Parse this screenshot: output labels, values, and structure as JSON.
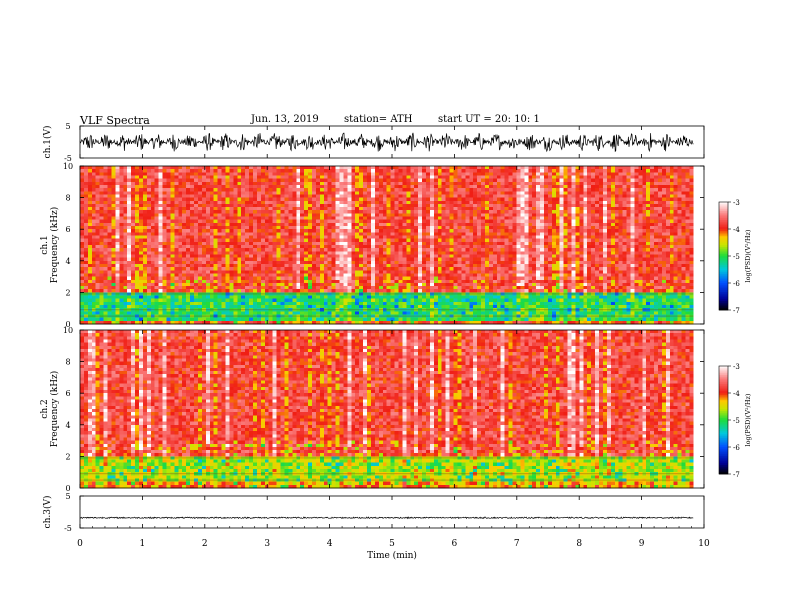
{
  "header": {
    "title": "VLF  Spectra",
    "date": "Jun. 13, 2019",
    "station": "station= ATH",
    "start": "start  UT  =    20: 10: 1"
  },
  "chart_data": [
    {
      "type": "line",
      "panel": "ch1-waveform",
      "ylabel": "ch.1(V)",
      "ylim": [
        -5,
        5
      ],
      "y_ticks": [
        "5",
        "-5"
      ],
      "x_range_min": [
        0,
        9.83
      ],
      "description_values": {
        "mean": 0,
        "amplitude_typical": 3
      },
      "color": "#000000"
    },
    {
      "type": "heatmap",
      "panel": "ch1-spectrogram",
      "ylabel": "ch.1",
      "ylabel2": "Frequency  (kHz)",
      "ylim": [
        0,
        10
      ],
      "y_ticks": [
        "0",
        "2",
        "4",
        "6",
        "8",
        "10"
      ],
      "x_range_min": [
        0,
        9.83
      ],
      "bands": [
        {
          "f_min": 0.0,
          "f_max": 0.3,
          "log_psd": -4.0
        },
        {
          "f_min": 0.3,
          "f_max": 2.0,
          "log_psd": -5.0
        },
        {
          "f_min": 2.0,
          "f_max": 10.0,
          "log_psd": -3.8
        }
      ],
      "colorbar": {
        "label": "log(PSD)(V²/Hz)",
        "range": [
          -7,
          -3
        ],
        "ticks": [
          "-3",
          "-4",
          "-5",
          "-6",
          "-7"
        ]
      }
    },
    {
      "type": "heatmap",
      "panel": "ch2-spectrogram",
      "ylabel": "ch.2",
      "ylabel2": "Frequency  (kHz)",
      "ylim": [
        0,
        10
      ],
      "y_ticks": [
        "0",
        "2",
        "4",
        "6",
        "8",
        "10"
      ],
      "x_range_min": [
        0,
        9.83
      ],
      "bands": [
        {
          "f_min": 0.0,
          "f_max": 0.5,
          "log_psd": -4.2
        },
        {
          "f_min": 0.5,
          "f_max": 2.0,
          "log_psd": -4.6
        },
        {
          "f_min": 2.0,
          "f_max": 10.0,
          "log_psd": -3.8
        }
      ],
      "colorbar": {
        "label": "log(PSD)(V²/Hz)",
        "range": [
          -7,
          -3
        ],
        "ticks": [
          "-3",
          "-4",
          "-5",
          "-6",
          "-7"
        ]
      }
    },
    {
      "type": "line",
      "panel": "ch3-waveform",
      "ylabel": "ch.3(V)",
      "ylim": [
        -5,
        5
      ],
      "y_ticks": [
        "5",
        "-5"
      ],
      "x_range_min": [
        0,
        9.83
      ],
      "description_values": {
        "mean": -1.8,
        "amplitude_typical": 0.2
      },
      "color": "#000000"
    }
  ],
  "x_axis": {
    "label": "Time  (min)",
    "range": [
      0,
      10
    ],
    "ticks": [
      "0",
      "1",
      "2",
      "3",
      "4",
      "5",
      "6",
      "7",
      "8",
      "9",
      "10"
    ]
  },
  "colors": {
    "background": "#ffffff",
    "axes": "#000000"
  }
}
